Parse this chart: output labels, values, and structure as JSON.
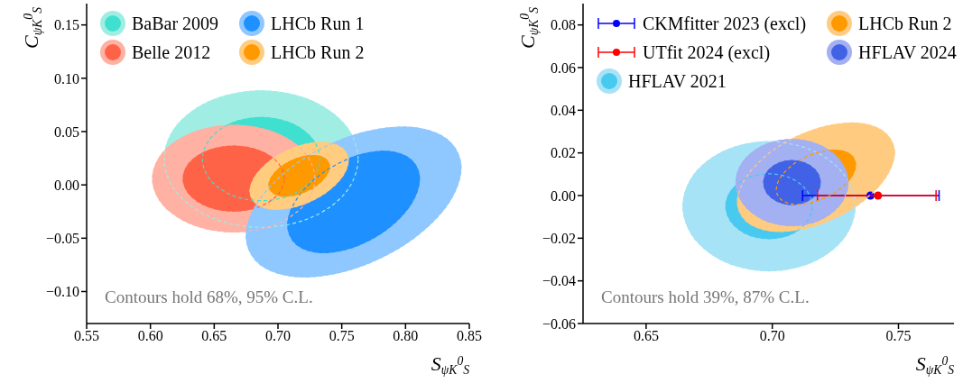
{
  "chart_data": [
    {
      "type": "area",
      "xlabel": "S$_{ψK}$$^{0}$$_{S}$",
      "ylabel": "C$_{ψK}$$^{0}$$_{S}$",
      "xlim": [
        0.55,
        0.85
      ],
      "xticks": [
        0.55,
        {
          "value": 0.6,
          "label": "0.60"
        },
        0.65,
        {
          "value": 0.7,
          "label": "0.70"
        },
        0.75,
        {
          "value": 0.8,
          "label": "0.80"
        },
        0.85
      ],
      "ylim": [
        -0.13,
        0.17
      ],
      "yticks": [
        {
          "value": -0.1,
          "label": "−0.10"
        },
        -0.05,
        {
          "value": 0,
          "label": "0.00"
        },
        0.05,
        {
          "value": 0.1,
          "label": "0.10"
        },
        0.15
      ],
      "legend": "top left",
      "annotations": [
        "Contours hold 68%, 95% C.L."
      ],
      "series": [
        {
          "color": "#a0eee3",
          "x": [
            0.7628,
            0.7526,
            0.7248,
            0.6868,
            0.6488,
            0.621,
            0.6108,
            0.621,
            0.6488,
            0.6868,
            0.7248,
            0.7526
          ],
          "values": [
            0.0242,
            0.0562,
            0.0796,
            0.0882,
            0.0796,
            0.0562,
            0.0242,
            -0.0078,
            -0.0312,
            -0.0398,
            -0.0312,
            -0.0078
          ]
        },
        {
          "name": "BaBar 2009",
          "color": "#40e0d0",
          "x": [
            0.7328,
            0.7266,
            0.7098,
            0.6868,
            0.6638,
            0.647,
            0.6408,
            0.647,
            0.6638,
            0.6868,
            0.7098,
            0.7266
          ],
          "values": [
            0.0242,
            0.0437,
            0.058,
            0.0632,
            0.058,
            0.0437,
            0.0242,
            0.0047,
            -0.0096,
            -0.0148,
            -0.0096,
            0.0047
          ]
        },
        {
          "color": "#ffb1a3",
          "x": [
            0.7289,
            0.7204,
            0.6971,
            0.6653,
            0.6335,
            0.6102,
            0.6017,
            0.6102,
            0.6335,
            0.6653,
            0.6971,
            0.7204
          ],
          "values": [
            0.0059,
            0.0309,
            0.0492,
            0.0559,
            0.0492,
            0.0309,
            0.0059,
            -0.0191,
            -0.0374,
            -0.0441,
            -0.0374,
            -0.0191
          ]
        },
        {
          "name": "Belle 2012",
          "color": "#ff6347",
          "x": [
            0.7049,
            0.6996,
            0.6851,
            0.6653,
            0.6455,
            0.631,
            0.6257,
            0.631,
            0.6455,
            0.6653,
            0.6851,
            0.6996
          ],
          "values": [
            0.0059,
            0.0212,
            0.0323,
            0.0364,
            0.0323,
            0.0212,
            0.0059,
            -0.0094,
            -0.0205,
            -0.0246,
            -0.0205,
            -0.0094
          ]
        },
        {
          "color": "#8fc7ff",
          "x": [
            0.8435,
            0.8322,
            0.8014,
            0.7593,
            0.7172,
            0.6864,
            0.6751,
            0.6864,
            0.7172,
            0.7593,
            0.8014,
            0.8322
          ],
          "values": [
            0.0159,
            0.043,
            0.0542,
            0.0466,
            0.0223,
            -0.0123,
            -0.0479,
            -0.075,
            -0.0862,
            -0.0786,
            -0.0543,
            -0.0197
          ]
        },
        {
          "name": "LHCb Run 1",
          "color": "#1e90ff",
          "x": [
            0.8109,
            0.804,
            0.7851,
            0.7593,
            0.7335,
            0.7146,
            0.7077,
            0.7146,
            0.7335,
            0.7593,
            0.7851,
            0.804
          ],
          "values": [
            0.0056,
            0.0239,
            0.0315,
            0.0263,
            0.0099,
            -0.0135,
            -0.0376,
            -0.0559,
            -0.0635,
            -0.0583,
            -0.0419,
            -0.0185
          ]
        },
        {
          "color": "#ffcc80",
          "x": [
            0.7551,
            0.7499,
            0.7359,
            0.7166,
            0.6973,
            0.6833,
            0.6781,
            0.6833,
            0.6973,
            0.7166,
            0.7359,
            0.7499
          ],
          "values": [
            0.0228,
            0.0348,
            0.0399,
            0.0365,
            0.0256,
            0.0101,
            -0.0058,
            -0.0178,
            -0.0229,
            -0.0195,
            -0.0086,
            0.0069
          ]
        },
        {
          "name": "LHCb Run 2",
          "color": "#ff9900",
          "x": [
            0.7403,
            0.7371,
            0.7285,
            0.7166,
            0.7047,
            0.6961,
            0.6929,
            0.6961,
            0.7047,
            0.7166,
            0.7285,
            0.7371
          ],
          "values": [
            0.0172,
            0.0245,
            0.0276,
            0.0255,
            0.0189,
            0.0095,
            -0.0002,
            -0.0075,
            -0.0106,
            -0.0085,
            -0.0019,
            0.0075
          ]
        }
      ]
    },
    {
      "type": "area",
      "xlabel": "S$_{ψK}$$^{0}$$_{S}$",
      "ylabel": "C$_{ψK}$$^{0}$$_{S}$",
      "xlim": [
        0.625,
        0.772
      ],
      "xticks": [
        0.65,
        {
          "value": 0.7,
          "label": "0.70"
        },
        0.75
      ],
      "ylim": [
        -0.06,
        0.09
      ],
      "yticks": [
        {
          "value": -0.06,
          "label": "−0.06"
        },
        {
          "value": -0.04,
          "label": "−0.04"
        },
        {
          "value": -0.02,
          "label": "−0.02"
        },
        {
          "value": 0,
          "label": "0.00"
        },
        0.02,
        0.04,
        0.06,
        0.08
      ],
      "legend": "top left",
      "annotations": [
        "Contours hold 39%, 87% C.L."
      ],
      "series": [
        {
          "name": "CKMfitter 2023 (excl)",
          "type": "scatter",
          "marker": "circle",
          "color": "#0000ff",
          "x": [
            0.7389
          ],
          "values": [
            0
          ],
          "xerrors": [
            [
              0.712,
              0.7661
            ]
          ]
        },
        {
          "name": "UTfit 2024 (excl)",
          "type": "scatter",
          "marker": "circle",
          "color": "#ff0000",
          "x": [
            0.7419
          ],
          "values": [
            0
          ],
          "xerrors": [
            [
              0.7179,
              0.7649
            ]
          ]
        },
        {
          "color": "#a7e3f6",
          "x": [
            0.7328,
            0.7282,
            0.7158,
            0.6987,
            0.6816,
            0.6692,
            0.6646,
            0.6692,
            0.6816,
            0.6987,
            0.7158,
            0.7282
          ],
          "values": [
            -0.005,
            0.0102,
            0.0212,
            0.0253,
            0.0212,
            0.0102,
            -0.005,
            -0.0202,
            -0.0312,
            -0.0353,
            -0.0312,
            -0.0202
          ]
        },
        {
          "name": "HFLAV 2021",
          "color": "#48c9f0",
          "x": [
            0.7158,
            0.7135,
            0.7073,
            0.6987,
            0.6901,
            0.6839,
            0.6816,
            0.6839,
            0.6901,
            0.6987,
            0.7073,
            0.7135
          ],
          "values": [
            -0.005,
            0.0026,
            0.0082,
            0.0102,
            0.0082,
            0.0026,
            -0.005,
            -0.0126,
            -0.0182,
            -0.0202,
            -0.0182,
            -0.0126
          ]
        },
        {
          "color": "#ffcb80",
          "x": [
            0.7484,
            0.7442,
            0.7329,
            0.7173,
            0.7017,
            0.6904,
            0.6862,
            0.6904,
            0.7017,
            0.7173,
            0.7329,
            0.7442
          ],
          "values": [
            0.0201,
            0.0299,
            0.034,
            0.0312,
            0.0224,
            0.0099,
            -0.0029,
            -0.0127,
            -0.0168,
            -0.014,
            -0.0052,
            0.0073
          ]
        },
        {
          "name": "LHCb Run 2",
          "color": "#ff9900",
          "x": [
            0.733,
            0.7309,
            0.7252,
            0.7173,
            0.7094,
            0.7037,
            0.7016,
            0.7037,
            0.7094,
            0.7173,
            0.7252,
            0.7309
          ],
          "values": [
            0.0144,
            0.0193,
            0.0213,
            0.0199,
            0.0155,
            0.0093,
            0.0028,
            -0.0021,
            -0.0041,
            -0.0027,
            0.0017,
            0.0079
          ]
        },
        {
          "color": "#a3b0f2",
          "x": [
            0.73,
            0.727,
            0.7189,
            0.7078,
            0.6967,
            0.6886,
            0.6856,
            0.6886,
            0.6967,
            0.7078,
            0.7189,
            0.727
          ],
          "values": [
            0.0061,
            0.0162,
            0.0236,
            0.0263,
            0.0236,
            0.0162,
            0.0061,
            -0.004,
            -0.0114,
            -0.0141,
            -0.0114,
            -0.004
          ]
        },
        {
          "name": "HFLAV 2024",
          "color": "#4162e6",
          "x": [
            0.719,
            0.7175,
            0.7134,
            0.7078,
            0.7022,
            0.6981,
            0.6966,
            0.6981,
            0.7022,
            0.7078,
            0.7134,
            0.7175
          ],
          "values": [
            0.0061,
            0.0113,
            0.015,
            0.0164,
            0.015,
            0.0113,
            0.0061,
            0.0009,
            -0.0028,
            -0.0042,
            -0.0028,
            0.0009
          ]
        }
      ]
    }
  ]
}
